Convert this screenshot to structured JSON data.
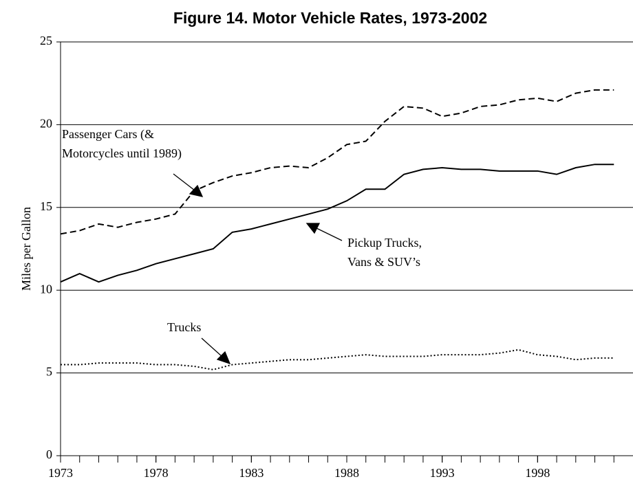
{
  "chart_data": {
    "type": "line",
    "title": "Figure 14. Motor Vehicle Rates, 1973-2002",
    "ylabel": "Miles per Gallon",
    "x": [
      1973,
      1974,
      1975,
      1976,
      1977,
      1978,
      1979,
      1980,
      1981,
      1982,
      1983,
      1984,
      1985,
      1986,
      1987,
      1988,
      1989,
      1990,
      1991,
      1992,
      1993,
      1994,
      1995,
      1996,
      1997,
      1998,
      1999,
      2000,
      2001,
      2002
    ],
    "series": [
      {
        "color": "#000000",
        "dash": "dashed",
        "values": [
          13.4,
          13.6,
          14.0,
          13.8,
          14.1,
          14.3,
          14.6,
          16.0,
          16.5,
          16.9,
          17.1,
          17.4,
          17.5,
          17.4,
          18.0,
          18.8,
          19.0,
          20.2,
          21.1,
          21.0,
          20.5,
          20.7,
          21.1,
          21.2,
          21.5,
          21.6,
          21.4,
          21.9,
          22.1,
          22.1
        ]
      },
      {
        "color": "#000000",
        "dash": "solid",
        "values": [
          10.5,
          11.0,
          10.5,
          10.9,
          11.2,
          11.6,
          11.9,
          12.2,
          12.5,
          13.5,
          13.7,
          14.0,
          14.3,
          14.6,
          14.9,
          15.4,
          16.1,
          16.1,
          17.0,
          17.3,
          17.4,
          17.3,
          17.3,
          17.2,
          17.2,
          17.2,
          17.0,
          17.4,
          17.6,
          17.6
        ]
      },
      {
        "color": "#000000",
        "dash": "dotted",
        "values": [
          5.5,
          5.5,
          5.6,
          5.6,
          5.6,
          5.5,
          5.5,
          5.4,
          5.2,
          5.5,
          5.6,
          5.7,
          5.8,
          5.8,
          5.9,
          6.0,
          6.1,
          6.0,
          6.0,
          6.0,
          6.1,
          6.1,
          6.1,
          6.2,
          6.4,
          6.1,
          6.0,
          5.8,
          5.9,
          5.9
        ]
      }
    ],
    "annotations": [
      {
        "lines": [
          "Passenger Cars (&",
          "Motorcycles until 1989)"
        ]
      },
      {
        "lines": [
          "Pickup Trucks,",
          "Vans & SUV’s"
        ]
      },
      {
        "lines": [
          "Trucks"
        ]
      }
    ],
    "xlim": [
      1973,
      2003
    ],
    "xticks": [
      1973,
      1978,
      1983,
      1988,
      1993,
      1998
    ],
    "ylim": [
      0,
      25
    ],
    "yticks": [
      0,
      5,
      10,
      15,
      20,
      25
    ],
    "grid": true
  }
}
